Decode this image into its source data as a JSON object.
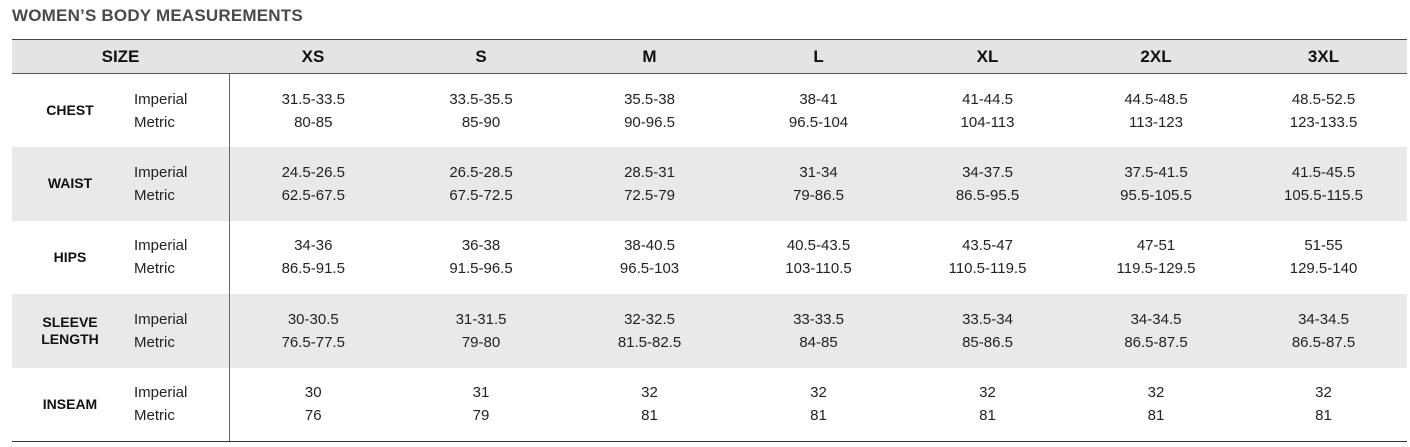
{
  "title": "WOMEN’S BODY MEASUREMENTS",
  "header": {
    "size_label": "SIZE",
    "sizes": [
      "XS",
      "S",
      "M",
      "L",
      "XL",
      "2XL",
      "3XL"
    ]
  },
  "units": {
    "imperial": "Imperial",
    "metric": "Metric"
  },
  "rows": [
    {
      "label": "CHEST",
      "imperial": [
        "31.5-33.5",
        "33.5-35.5",
        "35.5-38",
        "38-41",
        "41-44.5",
        "44.5-48.5",
        "48.5-52.5"
      ],
      "metric": [
        "80-85",
        "85-90",
        "90-96.5",
        "96.5-104",
        "104-113",
        "113-123",
        "123-133.5"
      ]
    },
    {
      "label": "WAIST",
      "imperial": [
        "24.5-26.5",
        "26.5-28.5",
        "28.5-31",
        "31-34",
        "34-37.5",
        "37.5-41.5",
        "41.5-45.5"
      ],
      "metric": [
        "62.5-67.5",
        "67.5-72.5",
        "72.5-79",
        "79-86.5",
        "86.5-95.5",
        "95.5-105.5",
        "105.5-115.5"
      ]
    },
    {
      "label": "HIPS",
      "imperial": [
        "34-36",
        "36-38",
        "38-40.5",
        "40.5-43.5",
        "43.5-47",
        "47-51",
        "51-55"
      ],
      "metric": [
        "86.5-91.5",
        "91.5-96.5",
        "96.5-103",
        "103-110.5",
        "110.5-119.5",
        "119.5-129.5",
        "129.5-140"
      ]
    },
    {
      "label_line1": "SLEEVE",
      "label_line2": "LENGTH",
      "imperial": [
        "30-30.5",
        "31-31.5",
        "32-32.5",
        "33-33.5",
        "33.5-34",
        "34-34.5",
        "34-34.5"
      ],
      "metric": [
        "76.5-77.5",
        "79-80",
        "81.5-82.5",
        "84-85",
        "85-86.5",
        "86.5-87.5",
        "86.5-87.5"
      ]
    },
    {
      "label": "INSEAM",
      "imperial": [
        "30",
        "31",
        "32",
        "32",
        "32",
        "32",
        "32"
      ],
      "metric": [
        "76",
        "79",
        "81",
        "81",
        "81",
        "81",
        "81"
      ]
    }
  ]
}
